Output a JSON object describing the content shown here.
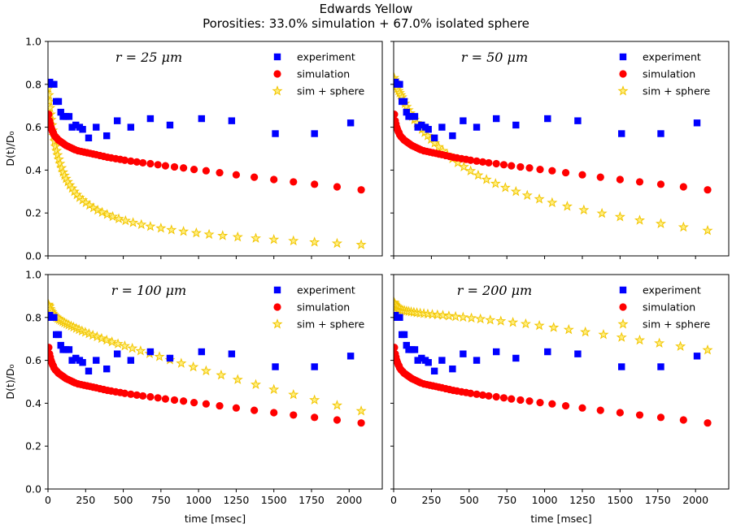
{
  "figure": {
    "title_line1": "Edwards Yellow",
    "title_line2": "Porosities: 33.0% simulation + 67.0% isolated sphere"
  },
  "colors": {
    "experiment": "#0000ff",
    "simulation": "#ff0000",
    "sphere_fill": "#ffef80",
    "sphere_edge": "#f2c500"
  },
  "chart_data": {
    "type": "scatter",
    "layout": "2x2 grid, shared axes",
    "xlabel": "time [msec]",
    "ylabel": "D(t)/D₀",
    "xlim": [
      0,
      2220
    ],
    "ylim": [
      0,
      1.0
    ],
    "xticks": [
      0,
      250,
      500,
      750,
      1000,
      1250,
      1500,
      1750,
      2000
    ],
    "yticks": [
      0.0,
      0.2,
      0.4,
      0.6,
      0.8,
      1.0
    ],
    "legend_placement": "upper right",
    "legend_entries": [
      "experiment",
      "simulation",
      "sim + sphere"
    ],
    "experiment": {
      "name": "experiment",
      "marker": "square",
      "x": [
        12,
        25,
        40,
        55,
        70,
        85,
        100,
        120,
        140,
        160,
        185,
        210,
        230,
        270,
        320,
        390,
        460,
        550,
        680,
        810,
        1020,
        1220,
        1510,
        1770,
        2010
      ],
      "y": [
        0.81,
        0.8,
        0.8,
        0.72,
        0.72,
        0.67,
        0.65,
        0.65,
        0.65,
        0.6,
        0.61,
        0.6,
        0.59,
        0.55,
        0.6,
        0.56,
        0.63,
        0.6,
        0.64,
        0.61,
        0.64,
        0.63,
        0.57,
        0.57,
        0.62
      ]
    },
    "simulation": {
      "name": "simulation",
      "marker": "circle",
      "x": [
        5,
        10,
        15,
        20,
        25,
        30,
        35,
        40,
        50,
        60,
        70,
        80,
        90,
        100,
        110,
        120,
        135,
        150,
        165,
        180,
        200,
        220,
        240,
        260,
        280,
        300,
        320,
        345,
        370,
        395,
        420,
        450,
        480,
        510,
        550,
        590,
        630,
        680,
        730,
        780,
        840,
        900,
        970,
        1050,
        1140,
        1250,
        1370,
        1500,
        1630,
        1770,
        1920,
        2080
      ],
      "y": [
        0.66,
        0.63,
        0.615,
        0.6,
        0.59,
        0.58,
        0.575,
        0.565,
        0.555,
        0.548,
        0.54,
        0.535,
        0.53,
        0.525,
        0.52,
        0.515,
        0.51,
        0.505,
        0.5,
        0.495,
        0.49,
        0.487,
        0.484,
        0.481,
        0.478,
        0.475,
        0.472,
        0.468,
        0.464,
        0.46,
        0.457,
        0.453,
        0.45,
        0.446,
        0.442,
        0.438,
        0.434,
        0.43,
        0.425,
        0.42,
        0.415,
        0.41,
        0.403,
        0.397,
        0.388,
        0.378,
        0.367,
        0.356,
        0.345,
        0.334,
        0.322,
        0.308
      ]
    },
    "panels": [
      {
        "name": "r25",
        "label": "r = 25 μm",
        "sim_sphere": {
          "name": "sim + sphere",
          "marker": "star",
          "x": [
            3,
            6,
            10,
            14,
            18,
            22,
            27,
            32,
            38,
            44,
            50,
            57,
            64,
            72,
            80,
            90,
            100,
            110,
            120,
            132,
            145,
            160,
            175,
            192,
            210,
            230,
            252,
            276,
            302,
            330,
            360,
            393,
            430,
            470,
            515,
            565,
            620,
            680,
            750,
            820,
            900,
            985,
            1070,
            1160,
            1260,
            1380,
            1500,
            1630,
            1770,
            1920,
            2080
          ],
          "y": [
            0.78,
            0.75,
            0.72,
            0.69,
            0.66,
            0.635,
            0.61,
            0.585,
            0.56,
            0.535,
            0.51,
            0.49,
            0.47,
            0.45,
            0.43,
            0.41,
            0.39,
            0.375,
            0.36,
            0.345,
            0.33,
            0.315,
            0.3,
            0.285,
            0.272,
            0.26,
            0.248,
            0.236,
            0.224,
            0.213,
            0.203,
            0.193,
            0.183,
            0.173,
            0.164,
            0.155,
            0.146,
            0.137,
            0.129,
            0.121,
            0.114,
            0.107,
            0.1,
            0.094,
            0.088,
            0.082,
            0.076,
            0.07,
            0.064,
            0.058,
            0.052
          ]
        }
      },
      {
        "name": "r50",
        "label": "r = 50 μm",
        "sim_sphere": {
          "name": "sim + sphere",
          "marker": "star",
          "x": [
            3,
            6,
            10,
            15,
            20,
            26,
            33,
            40,
            48,
            56,
            65,
            75,
            86,
            98,
            110,
            124,
            138,
            154,
            170,
            188,
            206,
            226,
            248,
            272,
            298,
            326,
            356,
            390,
            425,
            465,
            510,
            560,
            615,
            675,
            740,
            810,
            885,
            965,
            1050,
            1150,
            1260,
            1380,
            1500,
            1630,
            1770,
            1920,
            2080
          ],
          "y": [
            0.83,
            0.82,
            0.81,
            0.8,
            0.79,
            0.78,
            0.77,
            0.76,
            0.75,
            0.74,
            0.725,
            0.71,
            0.695,
            0.68,
            0.665,
            0.65,
            0.635,
            0.62,
            0.605,
            0.59,
            0.575,
            0.56,
            0.543,
            0.526,
            0.508,
            0.49,
            0.472,
            0.453,
            0.434,
            0.415,
            0.396,
            0.376,
            0.356,
            0.337,
            0.318,
            0.3,
            0.282,
            0.265,
            0.248,
            0.231,
            0.214,
            0.198,
            0.182,
            0.166,
            0.15,
            0.134,
            0.118
          ]
        }
      },
      {
        "name": "r100",
        "label": "r = 100 μm",
        "sim_sphere": {
          "name": "sim + sphere",
          "marker": "star",
          "x": [
            3,
            6,
            10,
            15,
            20,
            26,
            33,
            40,
            48,
            56,
            65,
            75,
            86,
            98,
            110,
            124,
            138,
            154,
            170,
            188,
            206,
            226,
            248,
            272,
            298,
            326,
            356,
            390,
            425,
            465,
            510,
            560,
            615,
            675,
            740,
            810,
            885,
            965,
            1050,
            1150,
            1260,
            1380,
            1500,
            1630,
            1770,
            1920,
            2080
          ],
          "y": [
            0.86,
            0.855,
            0.85,
            0.84,
            0.832,
            0.825,
            0.818,
            0.811,
            0.805,
            0.8,
            0.795,
            0.79,
            0.785,
            0.78,
            0.775,
            0.77,
            0.765,
            0.76,
            0.755,
            0.749,
            0.743,
            0.737,
            0.731,
            0.724,
            0.717,
            0.71,
            0.702,
            0.694,
            0.686,
            0.677,
            0.667,
            0.656,
            0.644,
            0.631,
            0.617,
            0.602,
            0.586,
            0.569,
            0.551,
            0.531,
            0.51,
            0.487,
            0.464,
            0.44,
            0.415,
            0.39,
            0.364
          ]
        }
      },
      {
        "name": "r200",
        "label": "r = 200 μm",
        "sim_sphere": {
          "name": "sim + sphere",
          "marker": "star",
          "x": [
            3,
            6,
            10,
            15,
            20,
            26,
            33,
            40,
            50,
            60,
            72,
            86,
            100,
            116,
            134,
            154,
            176,
            200,
            226,
            256,
            290,
            326,
            366,
            410,
            460,
            515,
            575,
            640,
            710,
            790,
            875,
            965,
            1060,
            1160,
            1270,
            1390,
            1510,
            1630,
            1760,
            1900,
            2080
          ],
          "y": [
            0.87,
            0.865,
            0.86,
            0.855,
            0.85,
            0.846,
            0.842,
            0.839,
            0.836,
            0.834,
            0.832,
            0.83,
            0.828,
            0.826,
            0.824,
            0.822,
            0.82,
            0.818,
            0.816,
            0.814,
            0.812,
            0.81,
            0.807,
            0.804,
            0.801,
            0.797,
            0.793,
            0.788,
            0.783,
            0.777,
            0.77,
            0.762,
            0.753,
            0.743,
            0.732,
            0.72,
            0.707,
            0.694,
            0.68,
            0.665,
            0.648
          ]
        }
      }
    ]
  }
}
